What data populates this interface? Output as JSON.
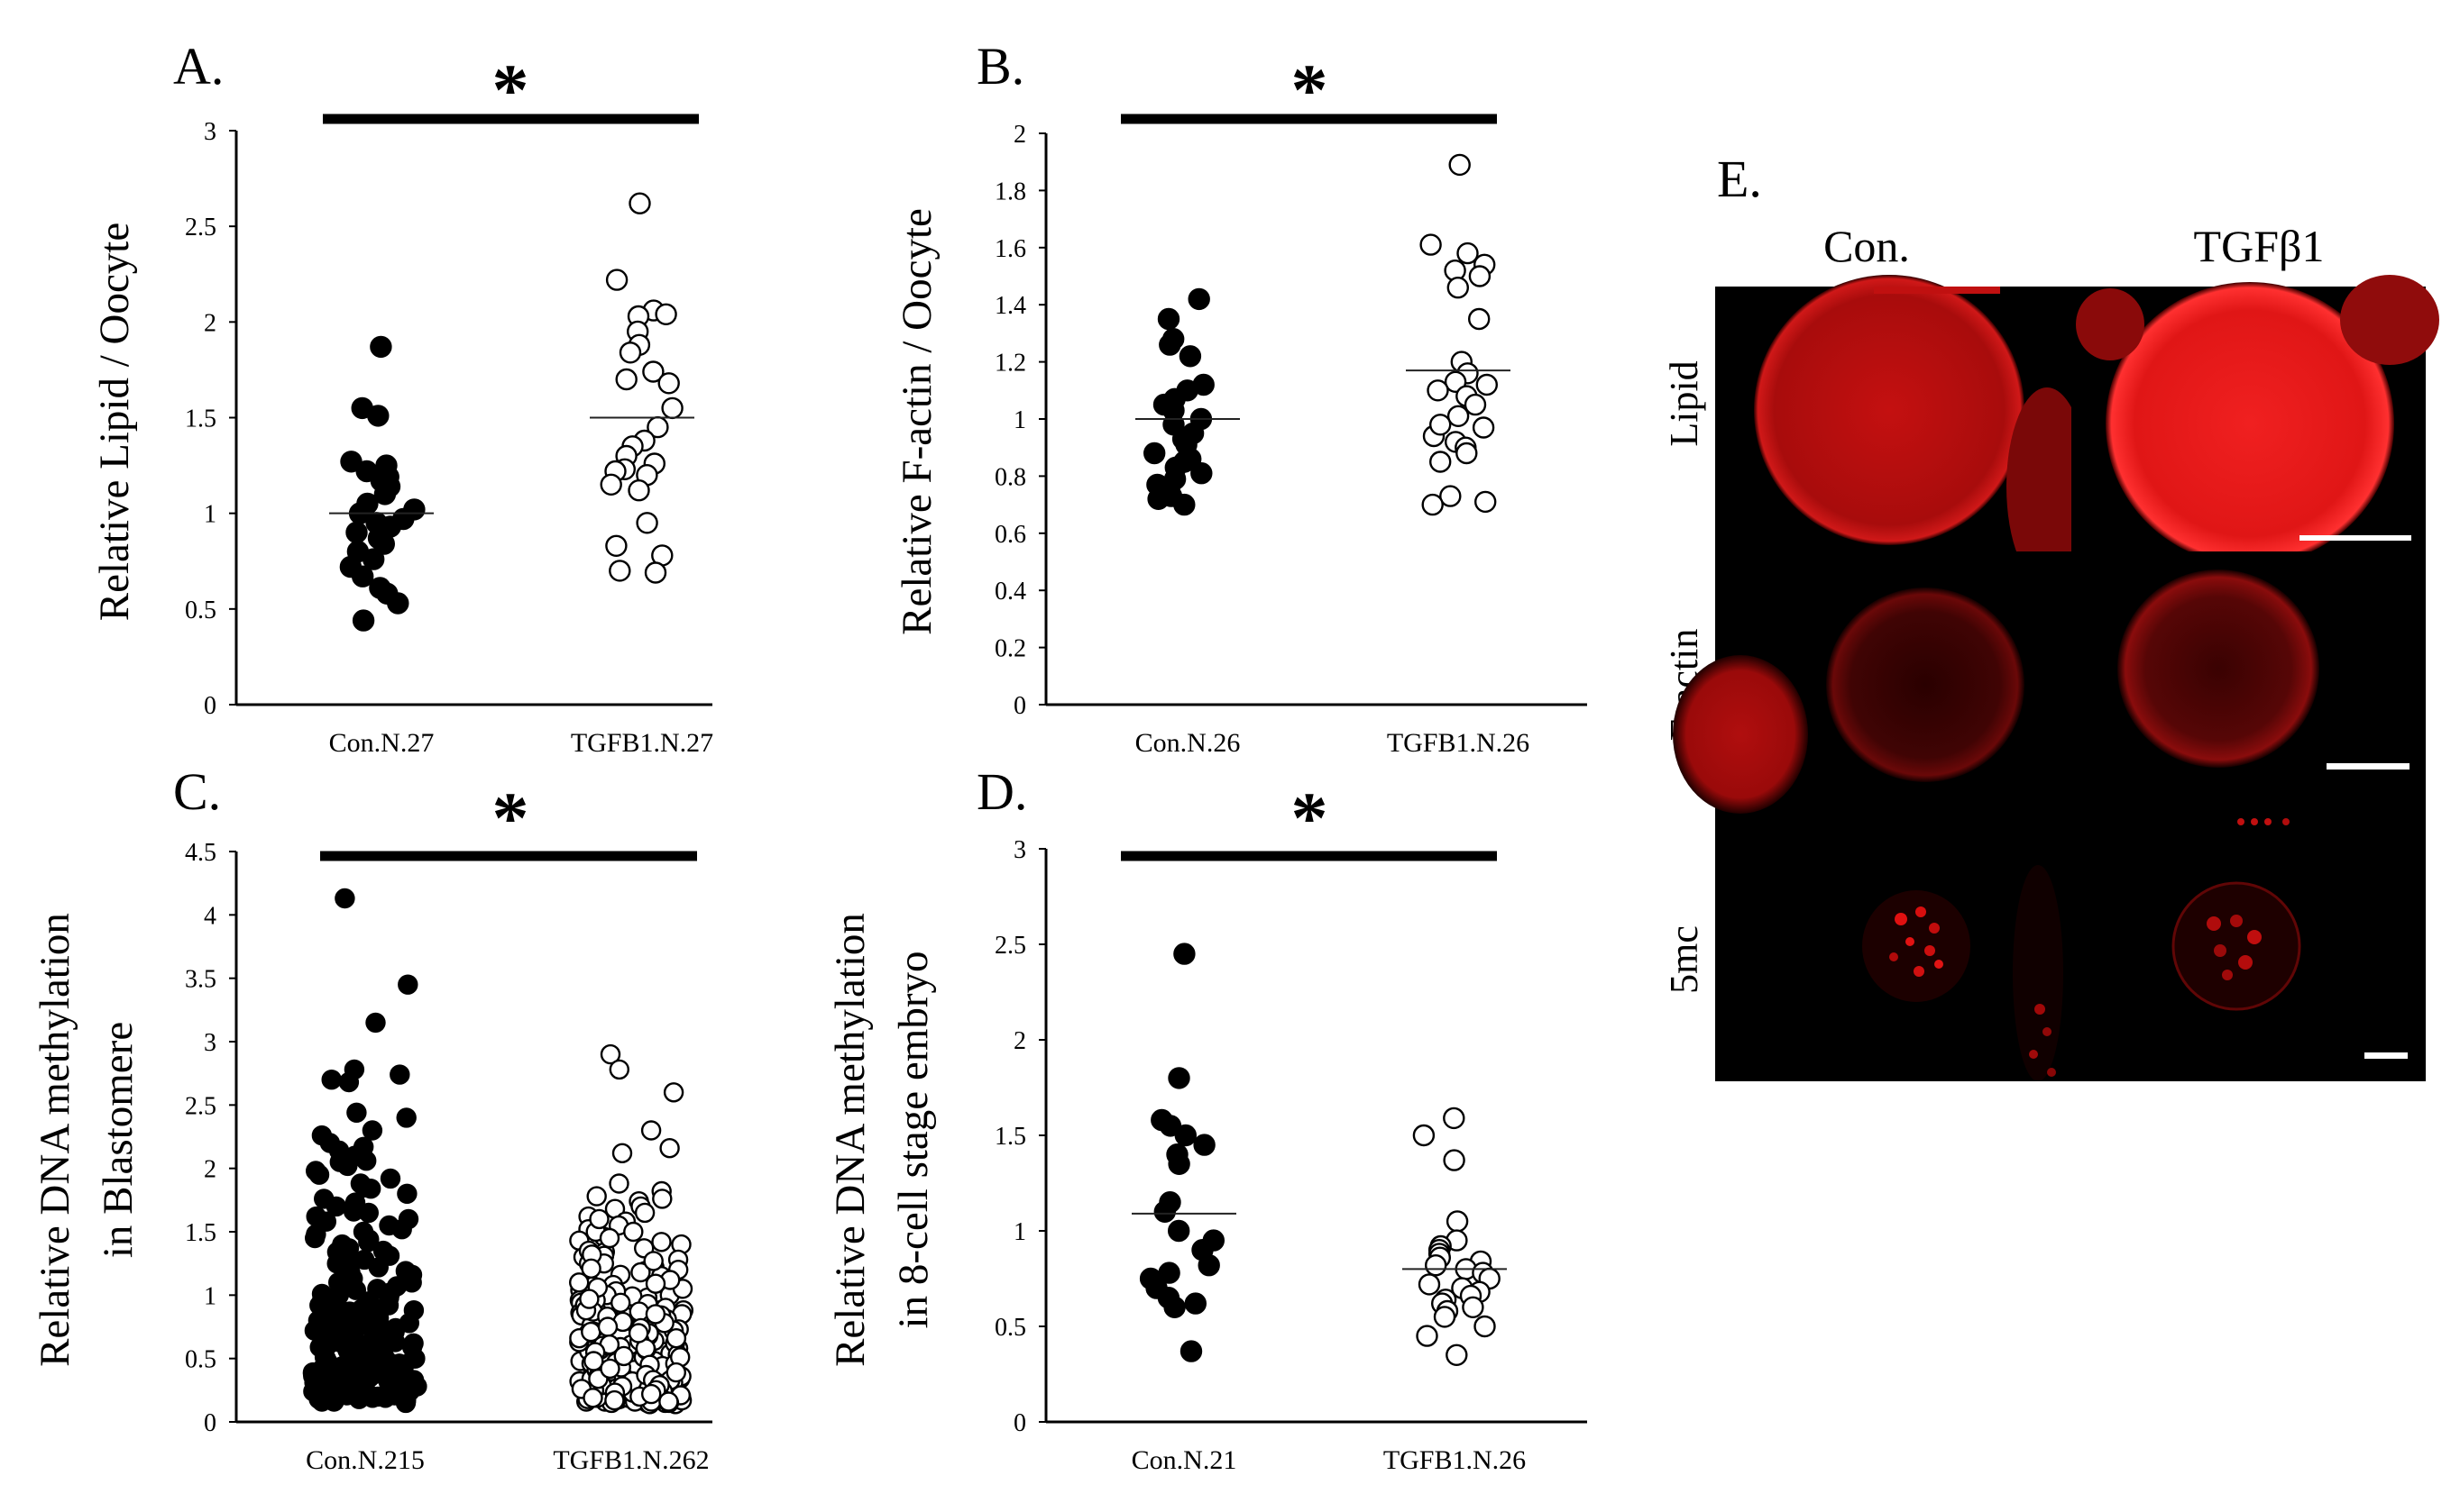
{
  "chart_data": [
    {
      "id": "A",
      "type": "scatter",
      "panel_label": "A.",
      "significance": "*",
      "ylabel_lines": [
        "Relative Lipid / Oocyte"
      ],
      "ylim": [
        0,
        3
      ],
      "yticks": [
        "0",
        "0.5",
        "1",
        "1.5",
        "2",
        "2.5",
        "3"
      ],
      "categories": [
        "Con.N.27",
        "TGFB1.N.27"
      ],
      "means": [
        1.0,
        1.5
      ],
      "series": [
        {
          "name": "Con.N.27",
          "filled": true,
          "values": [
            1.87,
            1.55,
            1.51,
            1.27,
            1.25,
            1.22,
            1.19,
            1.17,
            1.14,
            1.1,
            1.05,
            1.02,
            1.0,
            0.97,
            0.95,
            0.93,
            0.9,
            0.87,
            0.84,
            0.8,
            0.76,
            0.72,
            0.67,
            0.61,
            0.58,
            0.53,
            0.44
          ]
        },
        {
          "name": "TGFB1.N.27",
          "filled": false,
          "values": [
            2.62,
            2.22,
            2.06,
            2.04,
            2.03,
            1.95,
            1.88,
            1.84,
            1.74,
            1.7,
            1.68,
            1.55,
            1.45,
            1.38,
            1.35,
            1.3,
            1.26,
            1.23,
            1.22,
            1.2,
            1.15,
            1.12,
            0.95,
            0.83,
            0.78,
            0.7,
            0.69
          ]
        }
      ]
    },
    {
      "id": "B",
      "type": "scatter",
      "panel_label": "B.",
      "significance": "*",
      "ylabel_lines": [
        "Relative F-actin / Oocyte"
      ],
      "ylim": [
        0,
        2
      ],
      "yticks": [
        "0",
        "0.2",
        "0.4",
        "0.6",
        "0.8",
        "1",
        "1.2",
        "1.4",
        "1.6",
        "1.8",
        "2"
      ],
      "categories": [
        "Con.N.26",
        "TGFB1.N.26"
      ],
      "means": [
        1.0,
        1.17
      ],
      "series": [
        {
          "name": "Con.N.26",
          "filled": true,
          "values": [
            1.42,
            1.35,
            1.28,
            1.26,
            1.22,
            1.12,
            1.1,
            1.07,
            1.05,
            1.03,
            1.0,
            0.98,
            0.95,
            0.93,
            0.91,
            0.88,
            0.85,
            0.83,
            0.81,
            0.79,
            0.77,
            0.75,
            0.73,
            0.72,
            0.7,
            0.86
          ]
        },
        {
          "name": "TGFB1.N.26",
          "filled": false,
          "values": [
            1.89,
            1.61,
            1.58,
            1.54,
            1.52,
            1.5,
            1.46,
            1.35,
            1.2,
            1.16,
            1.13,
            1.12,
            1.08,
            1.05,
            1.01,
            0.97,
            0.94,
            0.92,
            0.9,
            0.88,
            0.85,
            0.73,
            0.71,
            0.7,
            1.1,
            0.98
          ]
        }
      ]
    },
    {
      "id": "C",
      "type": "scatter",
      "panel_label": "C.",
      "significance": "*",
      "ylabel_lines": [
        "Relative DNA methylation",
        "in Blastomere"
      ],
      "ylim": [
        0,
        4.5
      ],
      "yticks": [
        "0",
        "0.5",
        "1",
        "1.5",
        "2",
        "2.5",
        "3",
        "3.5",
        "4",
        "4.5"
      ],
      "categories": [
        "Con.N.215",
        "TGFB1.N.262"
      ],
      "series": [
        {
          "name": "Con.N.215",
          "filled": true,
          "values": [
            4.13,
            3.45,
            3.15,
            2.78,
            2.74,
            2.7,
            2.68,
            2.44,
            2.4,
            2.3,
            2.26,
            2.2,
            2.17,
            2.14,
            2.1,
            2.06,
            2.02,
            1.98,
            1.95,
            1.92,
            1.88,
            1.84,
            1.8,
            1.76,
            1.73,
            1.7,
            1.66,
            1.62,
            1.58,
            1.55,
            1.52,
            1.48,
            1.44,
            1.4,
            1.37,
            1.34,
            1.31,
            1.28,
            1.25,
            1.22,
            1.19,
            1.16,
            1.13,
            1.1,
            1.07,
            1.04,
            1.01,
            0.98,
            0.95,
            0.92,
            0.9,
            0.88,
            0.86,
            0.84,
            0.82,
            0.8,
            0.78,
            0.76,
            0.74,
            0.72,
            0.7,
            0.68,
            0.66,
            0.64,
            0.62,
            0.6,
            0.58,
            0.56,
            0.54,
            0.52,
            0.5,
            0.48,
            0.46,
            0.44,
            0.42,
            0.4,
            0.38,
            0.36,
            0.34,
            0.32,
            0.3,
            0.28,
            0.26,
            0.24,
            0.22,
            0.2,
            0.18,
            0.16,
            0.15,
            1.2,
            1.0,
            0.9,
            0.8,
            0.7,
            0.6,
            0.5,
            0.45,
            0.4,
            0.35,
            0.3,
            0.25,
            0.2,
            1.5,
            1.3,
            1.1,
            0.95,
            0.85,
            0.75,
            0.65,
            0.55,
            0.48,
            0.42,
            0.38,
            0.33,
            0.28,
            0.24,
            0.2,
            0.9,
            0.8,
            0.7,
            0.62,
            0.55,
            0.5,
            0.45,
            0.4,
            0.36,
            0.32,
            0.28,
            0.25,
            0.22,
            0.19,
            1.6,
            1.45,
            1.25,
            1.05,
            0.92,
            0.82,
            0.73,
            0.66,
            0.59,
            0.53,
            0.47,
            0.41,
            0.37,
            0.31,
            0.27,
            0.23,
            0.21,
            0.18,
            2.05,
            1.85,
            1.65,
            1.42,
            1.15,
            0.97,
            0.87,
            0.77,
            0.69,
            0.61,
            0.57,
            0.51,
            0.46,
            0.43,
            0.39,
            0.34,
            0.29,
            0.26,
            0.23,
            0.17,
            1.35,
            1.18,
            1.02,
            0.89,
            0.79,
            0.71,
            0.63,
            0.58,
            0.52,
            0.47,
            0.41,
            0.37,
            0.33,
            0.29,
            0.25,
            0.21,
            0.19,
            0.16,
            0.98,
            0.86,
            0.76,
            0.67,
            0.59,
            0.51,
            0.44,
            0.39,
            0.35,
            0.31,
            0.27,
            0.24,
            0.22,
            0.2,
            0.85,
            0.72,
            0.63,
            0.55,
            0.49,
            0.43,
            0.38,
            0.33,
            0.3,
            0.27,
            0.24
          ]
        },
        {
          "name": "TGFB1.N.262",
          "filled": false,
          "values": [
            2.9,
            2.78,
            2.6,
            2.3,
            2.16,
            2.12,
            1.88,
            1.82,
            1.78,
            1.76,
            1.74,
            1.7,
            1.68,
            1.65,
            1.62,
            1.58,
            1.55,
            1.52,
            1.5,
            1.46,
            1.43,
            1.4,
            1.37,
            1.34,
            1.31,
            1.28,
            1.25,
            1.22,
            1.19,
            1.16,
            1.13,
            1.1,
            1.07,
            1.04,
            1.02,
            1.0,
            0.98,
            0.96,
            0.94,
            0.92,
            0.9,
            0.88,
            0.86,
            0.84,
            0.82,
            0.8,
            0.78,
            0.76,
            0.74,
            0.72,
            0.7,
            0.68,
            0.66,
            0.64,
            0.62,
            0.6,
            0.58,
            0.56,
            0.54,
            0.52,
            0.5,
            0.48,
            0.46,
            0.44,
            0.42,
            0.4,
            0.38,
            0.36,
            0.34,
            0.32,
            0.3,
            0.28,
            0.26,
            0.24,
            0.22,
            0.2,
            0.18,
            0.16,
            0.15,
            0.14,
            1.2,
            1.1,
            1.0,
            0.95,
            0.9,
            0.85,
            0.8,
            0.75,
            0.7,
            0.65,
            0.6,
            0.55,
            0.5,
            0.45,
            0.4,
            0.35,
            0.3,
            0.25,
            0.2,
            0.17,
            1.3,
            1.15,
            1.05,
            0.97,
            0.89,
            0.83,
            0.77,
            0.71,
            0.67,
            0.63,
            0.58,
            0.53,
            0.49,
            0.43,
            0.39,
            0.33,
            0.29,
            0.27,
            0.23,
            0.19,
            0.16,
            1.5,
            1.35,
            1.18,
            1.08,
            0.99,
            0.91,
            0.86,
            0.81,
            0.73,
            0.69,
            0.61,
            0.57,
            0.51,
            0.47,
            0.41,
            0.37,
            0.31,
            0.26,
            0.21,
            0.18,
            0.15,
            1.6,
            1.42,
            1.27,
            1.12,
            1.03,
            0.93,
            0.87,
            0.79,
            0.72,
            0.64,
            0.59,
            0.54,
            0.48,
            0.42,
            0.36,
            0.32,
            0.28,
            0.24,
            0.2,
            0.17,
            1.0,
            0.92,
            0.84,
            0.76,
            0.68,
            0.62,
            0.56,
            0.5,
            0.44,
            0.38,
            0.34,
            0.3,
            0.26,
            0.22,
            0.19,
            0.16,
            0.14,
            1.25,
            1.09,
            0.96,
            0.87,
            0.78,
            0.7,
            0.63,
            0.57,
            0.51,
            0.46,
            0.4,
            0.35,
            0.31,
            0.27,
            0.23,
            0.2,
            0.17,
            1.45,
            1.32,
            1.21,
            1.06,
            0.94,
            0.83,
            0.74,
            0.66,
            0.6,
            0.53,
            0.47,
            0.43,
            0.37,
            0.33,
            0.29,
            0.25,
            0.21,
            0.18,
            0.15,
            0.88,
            0.79,
            0.71,
            0.64,
            0.57,
            0.52,
            0.46,
            0.41,
            0.36,
            0.32,
            0.28,
            0.24,
            0.21,
            0.18,
            0.16,
            0.97,
            0.85,
            0.75,
            0.66,
            0.58,
            0.51,
            0.45,
            0.39,
            0.34,
            0.3,
            0.26,
            0.23,
            0.2,
            0.17,
            0.15,
            0.7,
            0.61,
            0.55,
            0.48,
            0.42,
            0.37,
            0.33,
            0.29,
            0.25,
            0.22,
            0.19,
            0.16
          ]
        }
      ]
    },
    {
      "id": "D",
      "type": "scatter",
      "panel_label": "D.",
      "significance": "*",
      "ylabel_lines": [
        "Relative DNA methylation",
        "in 8-cell stage embryo"
      ],
      "ylim": [
        0,
        3
      ],
      "yticks": [
        "0",
        "0.5",
        "1",
        "1.5",
        "2",
        "2.5",
        "3"
      ],
      "categories": [
        "Con.N.21",
        "TGFB1.N.26"
      ],
      "means": [
        1.09,
        0.8
      ],
      "series": [
        {
          "name": "Con.N.21",
          "filled": true,
          "values": [
            2.45,
            1.8,
            1.58,
            1.55,
            1.5,
            1.45,
            1.4,
            1.35,
            1.15,
            1.1,
            1.0,
            0.95,
            0.9,
            0.82,
            0.78,
            0.75,
            0.7,
            0.65,
            0.62,
            0.6,
            0.37
          ]
        },
        {
          "name": "TGFB1.N.26",
          "filled": false,
          "values": [
            1.59,
            1.5,
            1.37,
            1.05,
            0.95,
            0.92,
            0.9,
            0.88,
            0.86,
            0.84,
            0.82,
            0.8,
            0.78,
            0.75,
            0.72,
            0.7,
            0.68,
            0.66,
            0.64,
            0.62,
            0.6,
            0.58,
            0.55,
            0.5,
            0.45,
            0.35
          ]
        }
      ]
    }
  ],
  "panel_e": {
    "label": "E.",
    "columns": [
      "Con.",
      "TGFβ1"
    ],
    "rows": [
      "Lipid",
      "F-actin",
      "5mc"
    ],
    "fluorescence_color": "#d80000"
  }
}
